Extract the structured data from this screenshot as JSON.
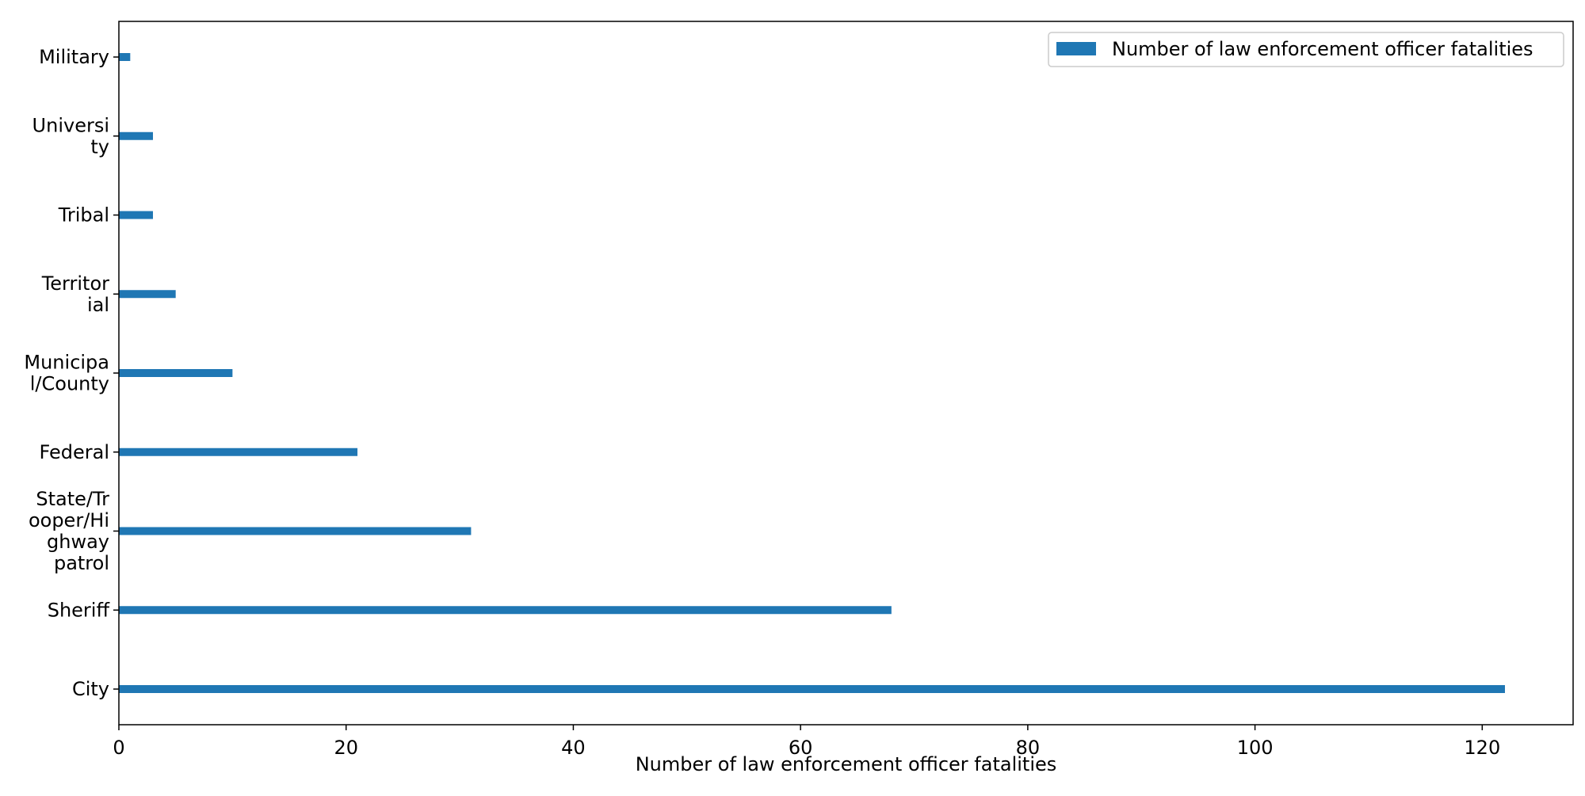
{
  "chart_data": {
    "type": "bar",
    "orientation": "horizontal",
    "categories": [
      "City",
      "Sheriff",
      "State/Trooper/Highway patrol",
      "Federal",
      "Municipal/County",
      "Territorial",
      "Tribal",
      "University",
      "Military"
    ],
    "category_display_lines": [
      [
        "City"
      ],
      [
        "Sheriff"
      ],
      [
        "State/Tr",
        "ooper/Hi",
        "ghway",
        "patrol"
      ],
      [
        "Federal"
      ],
      [
        "Municipa",
        "l/County"
      ],
      [
        "Territor",
        "ial"
      ],
      [
        "Tribal"
      ],
      [
        "Universi",
        "ty"
      ],
      [
        "Military"
      ]
    ],
    "series": [
      {
        "name": "Number of law enforcement officer fatalities",
        "values": [
          122,
          68,
          31,
          21,
          10,
          5,
          3,
          3,
          1
        ],
        "color": "#1f77b4"
      }
    ],
    "xlabel": "Number of law enforcement officer fatalities",
    "ylabel": "",
    "title": "",
    "xlim": [
      0,
      128
    ],
    "xticks": [
      0,
      20,
      40,
      60,
      80,
      100,
      120
    ],
    "grid": false,
    "legend_position": "top-right"
  }
}
